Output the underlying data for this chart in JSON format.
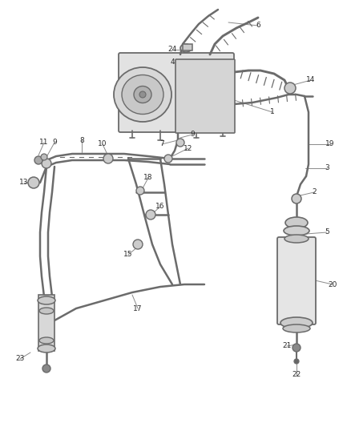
{
  "bg_color": "#ffffff",
  "line_color": "#6b6b6b",
  "text_color": "#2a2a2a",
  "leader_color": "#8a8a8a",
  "fig_w": 4.38,
  "fig_h": 5.33,
  "dpi": 100,
  "font_size": 6.5,
  "lw_main": 1.3,
  "lw_hose": 1.8,
  "lw_leader": 0.7
}
